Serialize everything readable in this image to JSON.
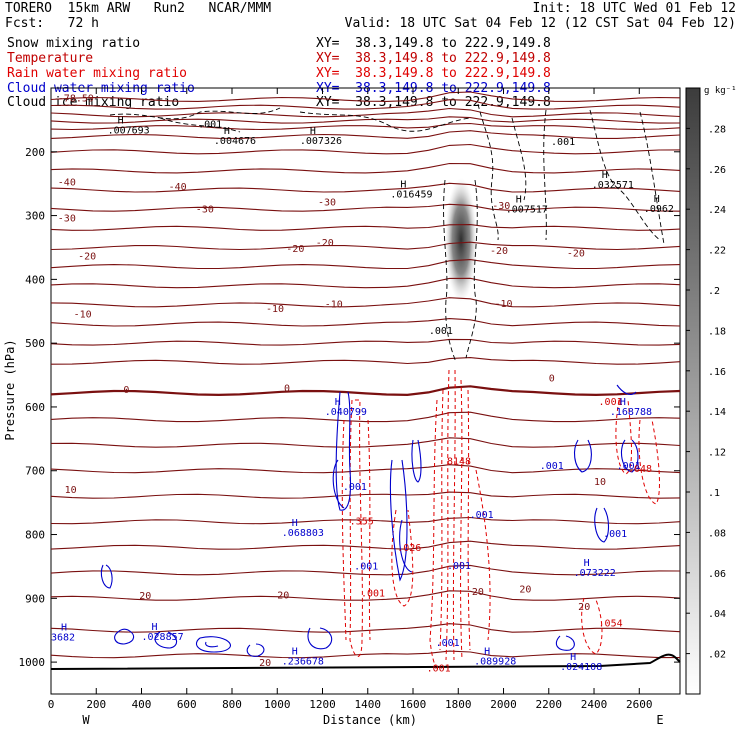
{
  "header": {
    "model": "TORERO  15km ARW   Run2   NCAR/MMM",
    "init": "Init: 18 UTC Wed 01 Feb 12",
    "fcst": "Fcst:   72 h",
    "valid": "Valid: 18 UTC Sat 04 Feb 12 (12 CST Sat 04 Feb 12)"
  },
  "fields": [
    {
      "name": "Snow mixing ratio",
      "xy": "",
      "color": "#000000"
    },
    {
      "name": "Temperature",
      "xy": "XY=  38.3,149.8 to 222.9,149.8",
      "color": "#c00000"
    },
    {
      "name": "Rain water mixing ratio",
      "xy": "XY=  38.3,149.8 to 222.9,149.8",
      "color": "#e00000"
    },
    {
      "name": "Cloud water mixing ratio",
      "xy": "XY=  38.3,149.8 to 222.9,149.8",
      "color": "#0000cc"
    },
    {
      "name": "Cloud ice mixing ratio",
      "xy": "XY=  38.3,149.8 to 222.9,149.8",
      "color": "#000000"
    }
  ],
  "snow_xy": "XY=  38.3,149.8 to 222.9,149.8",
  "colorbar": {
    "unit": "g kg⁻¹",
    "ticks": [
      ".28",
      ".26",
      ".24",
      ".22",
      ".2",
      ".18",
      ".16",
      ".14",
      ".12",
      ".1",
      ".08",
      ".06",
      ".04",
      ".02"
    ]
  },
  "chart_data": {
    "type": "contour",
    "xlabel": "Distance (km)",
    "ylabel": "Pressure (hPa)",
    "xlim": [
      0,
      2780
    ],
    "ylim": [
      1050,
      100
    ],
    "x_ticks": [
      0,
      200,
      400,
      600,
      800,
      1000,
      1200,
      1400,
      1600,
      1800,
      2000,
      2200,
      2400,
      2600
    ],
    "y_ticks": [
      200,
      300,
      400,
      500,
      600,
      700,
      800,
      900,
      1000
    ],
    "endpoints": {
      "left": "W",
      "right": "E"
    },
    "temperature_labels": [
      {
        "text": "-78.59",
        "x": 30,
        "p": 121
      },
      {
        "text": "-40",
        "x": 30,
        "p": 253
      },
      {
        "text": "-40",
        "x": 520,
        "p": 260
      },
      {
        "text": "-30",
        "x": 30,
        "p": 309
      },
      {
        "text": "-30",
        "x": 640,
        "p": 295
      },
      {
        "text": "-30",
        "x": 1180,
        "p": 284
      },
      {
        "text": "-30",
        "x": 1950,
        "p": 290
      },
      {
        "text": "-20",
        "x": 120,
        "p": 369
      },
      {
        "text": "-20",
        "x": 1040,
        "p": 357
      },
      {
        "text": "-20",
        "x": 1170,
        "p": 348
      },
      {
        "text": "-20",
        "x": 1940,
        "p": 360
      },
      {
        "text": "-20",
        "x": 2280,
        "p": 364
      },
      {
        "text": "-10",
        "x": 100,
        "p": 460
      },
      {
        "text": "-10",
        "x": 950,
        "p": 451
      },
      {
        "text": "-10",
        "x": 1210,
        "p": 444
      },
      {
        "text": "-10",
        "x": 1960,
        "p": 443
      },
      {
        "text": "0",
        "x": 320,
        "p": 578
      },
      {
        "text": "0",
        "x": 1030,
        "p": 576
      },
      {
        "text": "0",
        "x": 2200,
        "p": 560
      },
      {
        "text": "10",
        "x": 60,
        "p": 735
      },
      {
        "text": "10",
        "x": 2400,
        "p": 722
      },
      {
        "text": "20",
        "x": 390,
        "p": 901
      },
      {
        "text": "20",
        "x": 1000,
        "p": 900
      },
      {
        "text": "20",
        "x": 1860,
        "p": 895
      },
      {
        "text": "20",
        "x": 2070,
        "p": 891
      },
      {
        "text": "20",
        "x": 2330,
        "p": 918
      },
      {
        "text": "20",
        "x": 920,
        "p": 1006
      }
    ],
    "snow_labels": [
      {
        "text": ".001",
        "x": 650,
        "p": 162
      },
      {
        "text": ".001",
        "x": 2210,
        "p": 189
      },
      {
        "text": ".001",
        "x": 1670,
        "p": 486
      }
    ],
    "snow_maxima": [
      {
        "text": ".007693",
        "x": 250,
        "p": 171
      },
      {
        "text": ".004676",
        "x": 720,
        "p": 188
      },
      {
        "text": ".007326",
        "x": 1100,
        "p": 188
      },
      {
        "text": ".016459",
        "x": 1500,
        "p": 272
      },
      {
        "text": ".007517",
        "x": 2010,
        "p": 295
      },
      {
        "text": ".032571",
        "x": 2390,
        "p": 257
      },
      {
        "text": ".0962",
        "x": 2620,
        "p": 294
      }
    ],
    "rain_labels": [
      {
        "text": ".001",
        "x": 2420,
        "p": 597
      },
      {
        "text": ".048",
        "x": 2550,
        "p": 702
      },
      {
        "text": ".355",
        "x": 1320,
        "p": 784
      },
      {
        "text": ".026",
        "x": 1530,
        "p": 826
      },
      {
        "text": ".001",
        "x": 1370,
        "p": 897
      },
      {
        "text": ".054",
        "x": 2420,
        "p": 944
      },
      {
        "text": ".001",
        "x": 1660,
        "p": 1015
      }
    ],
    "rain_maxima": [
      {
        "text": "8148",
        "x": 1750,
        "p": 690
      }
    ],
    "cloud_labels": [
      {
        "text": ".001",
        "x": 1290,
        "p": 730
      },
      {
        "text": ".001",
        "x": 1340,
        "p": 855
      },
      {
        "text": ".001",
        "x": 2160,
        "p": 697
      },
      {
        "text": ".001",
        "x": 2500,
        "p": 697
      },
      {
        "text": ".001",
        "x": 1850,
        "p": 774
      },
      {
        "text": ".001",
        "x": 2440,
        "p": 804
      },
      {
        "text": ".001",
        "x": 1750,
        "p": 854
      },
      {
        "text": ".001",
        "x": 1700,
        "p": 975
      }
    ],
    "cloud_maxima": [
      {
        "text": ".040799",
        "x": 1210,
        "p": 613
      },
      {
        "text": ".168788",
        "x": 2470,
        "p": 613
      },
      {
        "text": ".068803",
        "x": 1020,
        "p": 802
      },
      {
        "text": ".073222",
        "x": 2310,
        "p": 865
      },
      {
        "text": ".028857",
        "x": 400,
        "p": 965
      },
      {
        "text": ".236678",
        "x": 1020,
        "p": 1004
      },
      {
        "text": ".089928",
        "x": 1870,
        "p": 1004
      },
      {
        "text": ".024108",
        "x": 2250,
        "p": 1012
      },
      {
        "text": "3682",
        "x": 0,
        "p": 966
      }
    ]
  }
}
